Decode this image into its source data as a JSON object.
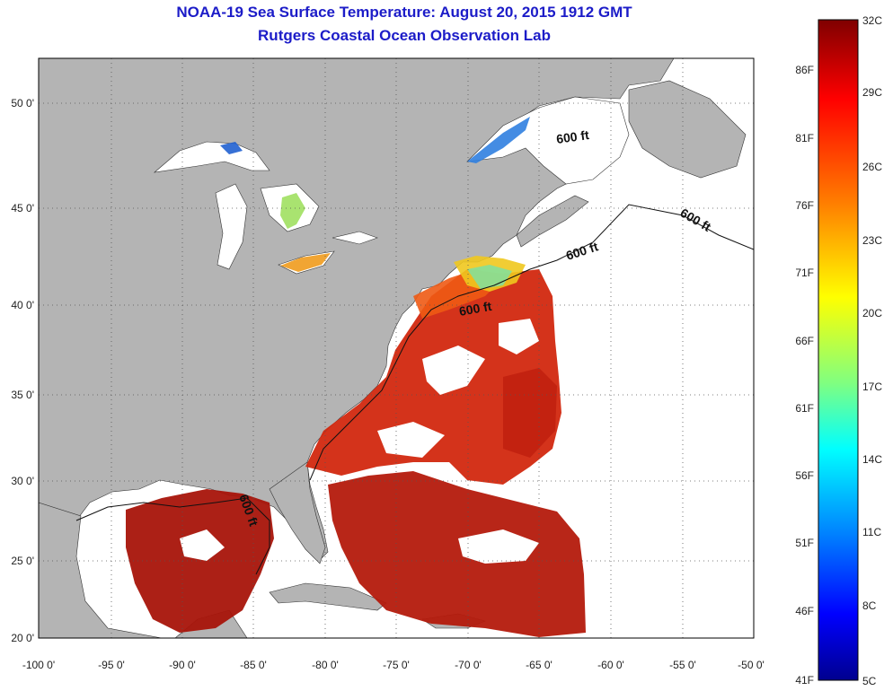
{
  "title": "NOAA-19 Sea Surface Temperature:  August 20, 2015 1912 GMT",
  "subtitle": "Rutgers Coastal Ocean Observation Lab",
  "lon_ticks": [
    "-100 0'",
    "-95 0'",
    "-90 0'",
    "-85 0'",
    "-80 0'",
    "-75 0'",
    "-70 0'",
    "-65 0'",
    "-60 0'",
    "-55 0'",
    "-50 0'"
  ],
  "lat_ticks": [
    "50 0'",
    "45 0'",
    "40 0'",
    "35 0'",
    "30 0'",
    "25 0'",
    "20 0'"
  ],
  "isobath_labels": [
    "600 ft",
    "600 ft",
    "600 ft",
    "600 ft",
    "600 ft"
  ],
  "colorbar": {
    "celsius": [
      "32C",
      "29C",
      "26C",
      "23C",
      "20C",
      "17C",
      "14C",
      "11C",
      "8C",
      "5C"
    ],
    "fahrenheit": [
      "86F",
      "81F",
      "76F",
      "71F",
      "66F",
      "61F",
      "56F",
      "51F",
      "46F",
      "41F"
    ],
    "colors": [
      "#7f0000",
      "#ff0000",
      "#ff8000",
      "#ffff00",
      "#80ff80",
      "#00ffff",
      "#0080ff",
      "#0000ff",
      "#00008f"
    ]
  },
  "colors": {
    "land": "#b4b4b4",
    "sst_warm": "#c81e0f",
    "sst_hot": "#a0140a",
    "sst_orange": "#ee5a14",
    "sst_cool": "#f0c81e",
    "title": "#1c1cc8"
  }
}
